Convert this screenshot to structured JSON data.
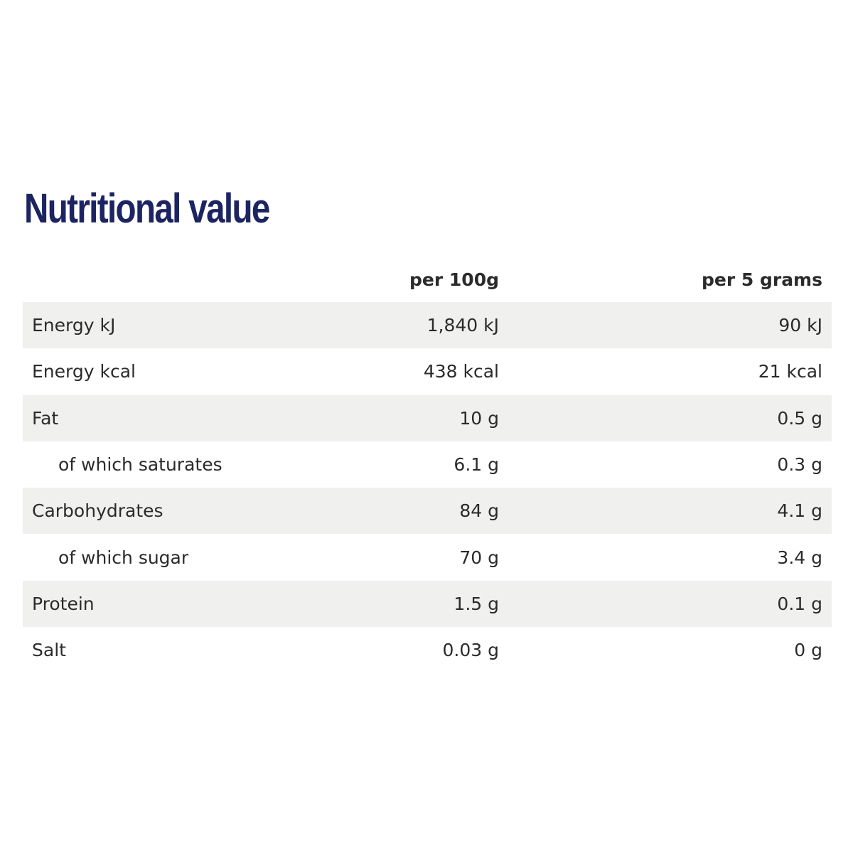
{
  "title": "Nutritional value",
  "header": {
    "label": "",
    "col1": "per 100g",
    "col2": "per 5 grams"
  },
  "rows": [
    {
      "label": "Energy kJ",
      "per_100g": "1,840 kJ",
      "per_5g": "90 kJ",
      "indent": false
    },
    {
      "label": "Energy kcal",
      "per_100g": "438 kcal",
      "per_5g": "21 kcal",
      "indent": false
    },
    {
      "label": "Fat",
      "per_100g": "10 g",
      "per_5g": "0.5 g",
      "indent": false
    },
    {
      "label": "of which saturates",
      "per_100g": "6.1 g",
      "per_5g": "0.3 g",
      "indent": true
    },
    {
      "label": "Carbohydrates",
      "per_100g": "84 g",
      "per_5g": "4.1 g",
      "indent": false
    },
    {
      "label": "of which sugar",
      "per_100g": "70 g",
      "per_5g": "3.4 g",
      "indent": true
    },
    {
      "label": "Protein",
      "per_100g": "1.5 g",
      "per_5g": "0.1 g",
      "indent": false
    },
    {
      "label": "Salt",
      "per_100g": "0.03 g",
      "per_5g": "0 g",
      "indent": false
    }
  ],
  "colors": {
    "title": "#1c2462",
    "text": "#2b2b2b",
    "row_shade": "#f0f0ee"
  }
}
